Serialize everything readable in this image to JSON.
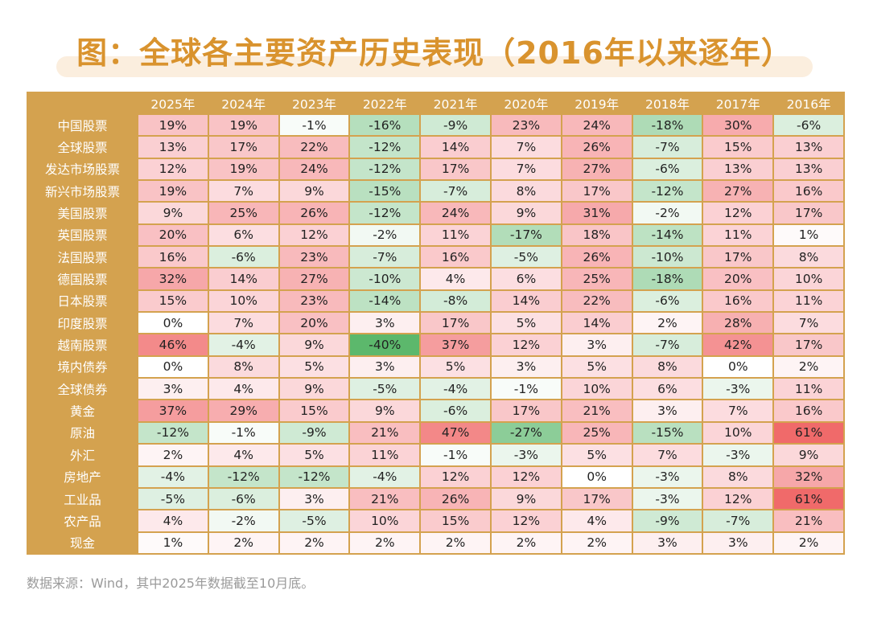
{
  "title": "图：全球各主要资产历史表现（2016年以来逐年）",
  "footer": "数据来源：Wind，其中2025年数据截至10月底。",
  "colors": {
    "header_bg": "#d4a24f",
    "title_text": "#d9932e",
    "positive_max": "#f06a6a",
    "negative_max": "#5cb86c"
  },
  "chart_data": {
    "type": "table",
    "columns": [
      "2025年",
      "2024年",
      "2023年",
      "2022年",
      "2021年",
      "2020年",
      "2019年",
      "2018年",
      "2017年",
      "2016年"
    ],
    "rows": [
      {
        "label": "中国股票",
        "values": [
          19,
          19,
          -1,
          -16,
          -9,
          23,
          24,
          -18,
          30,
          -6
        ]
      },
      {
        "label": "全球股票",
        "values": [
          13,
          17,
          22,
          -12,
          14,
          7,
          26,
          -7,
          15,
          13
        ]
      },
      {
        "label": "发达市场股票",
        "values": [
          12,
          19,
          24,
          -12,
          17,
          7,
          27,
          -6,
          13,
          13
        ]
      },
      {
        "label": "新兴市场股票",
        "values": [
          19,
          7,
          9,
          -15,
          -7,
          8,
          17,
          -12,
          27,
          16
        ]
      },
      {
        "label": "美国股票",
        "values": [
          9,
          25,
          26,
          -12,
          24,
          9,
          31,
          -2,
          12,
          17
        ]
      },
      {
        "label": "英国股票",
        "values": [
          20,
          6,
          12,
          -2,
          11,
          -17,
          18,
          -14,
          11,
          1
        ]
      },
      {
        "label": "法国股票",
        "values": [
          16,
          -6,
          23,
          -7,
          16,
          -5,
          26,
          -10,
          17,
          8
        ]
      },
      {
        "label": "德国股票",
        "values": [
          32,
          14,
          27,
          -10,
          4,
          6,
          25,
          -18,
          20,
          10
        ]
      },
      {
        "label": "日本股票",
        "values": [
          15,
          10,
          23,
          -14,
          -8,
          14,
          22,
          -6,
          16,
          11
        ]
      },
      {
        "label": "印度股票",
        "values": [
          0,
          7,
          20,
          3,
          17,
          5,
          14,
          2,
          28,
          7
        ]
      },
      {
        "label": "越南股票",
        "values": [
          46,
          -4,
          9,
          -40,
          37,
          12,
          3,
          -7,
          42,
          17
        ]
      },
      {
        "label": "境内债券",
        "values": [
          0,
          8,
          5,
          3,
          5,
          3,
          5,
          8,
          0,
          2
        ]
      },
      {
        "label": "全球债券",
        "values": [
          3,
          4,
          9,
          -5,
          -4,
          -1,
          10,
          6,
          -3,
          11
        ]
      },
      {
        "label": "黄金",
        "values": [
          37,
          29,
          15,
          9,
          -6,
          17,
          21,
          3,
          7,
          16
        ]
      },
      {
        "label": "原油",
        "values": [
          -12,
          -1,
          -9,
          21,
          47,
          -27,
          25,
          -15,
          10,
          61
        ]
      },
      {
        "label": "外汇",
        "values": [
          2,
          4,
          5,
          11,
          -1,
          -3,
          5,
          7,
          -3,
          9
        ]
      },
      {
        "label": "房地产",
        "values": [
          -4,
          -12,
          -12,
          -4,
          12,
          12,
          0,
          -3,
          8,
          32
        ]
      },
      {
        "label": "工业品",
        "values": [
          -5,
          -6,
          3,
          21,
          26,
          9,
          17,
          -3,
          12,
          61
        ]
      },
      {
        "label": "农产品",
        "values": [
          4,
          -2,
          -5,
          10,
          15,
          12,
          4,
          -9,
          -7,
          21
        ]
      },
      {
        "label": "现金",
        "values": [
          1,
          2,
          2,
          2,
          2,
          2,
          2,
          3,
          3,
          2
        ]
      }
    ],
    "unit": "%"
  }
}
